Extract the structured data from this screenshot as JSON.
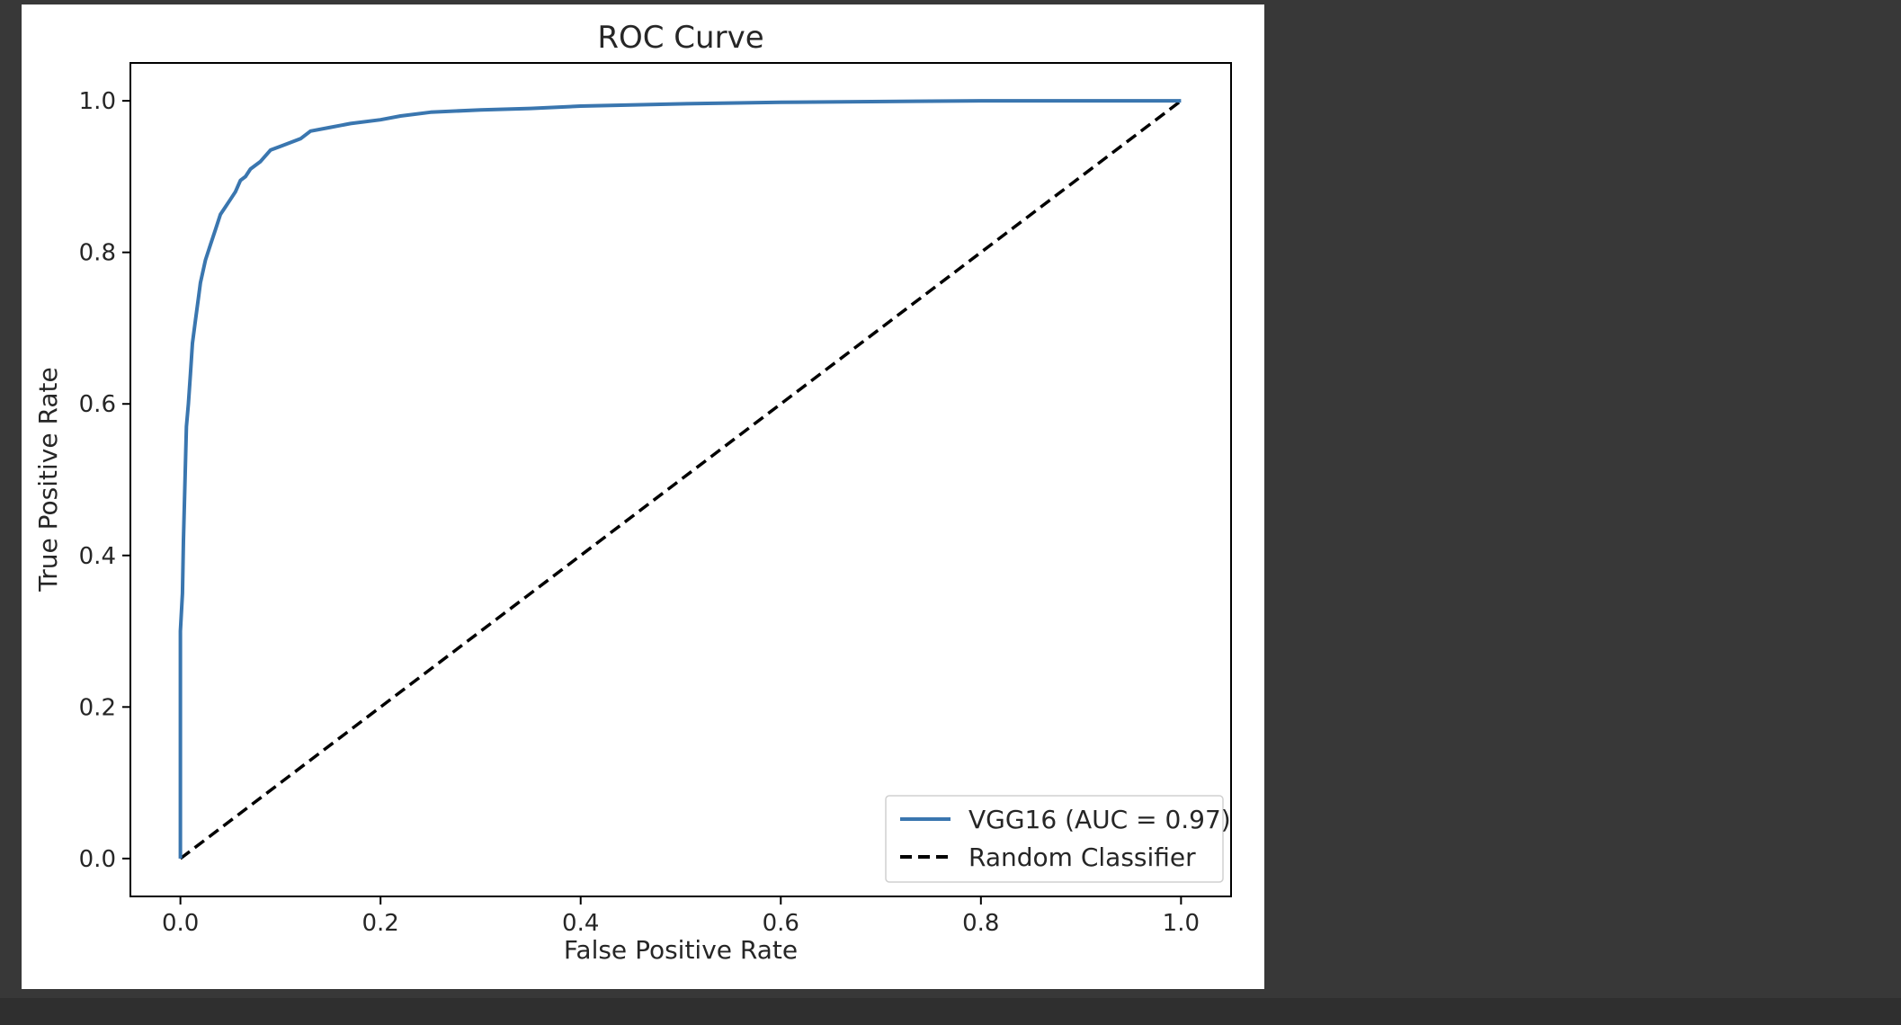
{
  "colors": {
    "page_background": "#383838",
    "figure_background": "#ffffff",
    "roc_line": "#3a76af",
    "random_line": "#000000",
    "text": "#262626"
  },
  "chart_data": {
    "type": "line",
    "title": "ROC Curve",
    "xlabel": "False Positive Rate",
    "ylabel": "True Positive Rate",
    "xlim": [
      -0.05,
      1.05
    ],
    "ylim": [
      -0.05,
      1.05
    ],
    "x_ticks": [
      0.0,
      0.2,
      0.4,
      0.6,
      0.8,
      1.0
    ],
    "y_ticks": [
      0.0,
      0.2,
      0.4,
      0.6,
      0.8,
      1.0
    ],
    "x_tick_labels": [
      "0.0",
      "0.2",
      "0.4",
      "0.6",
      "0.8",
      "1.0"
    ],
    "y_tick_labels": [
      "0.0",
      "0.2",
      "0.4",
      "0.6",
      "0.8",
      "1.0"
    ],
    "grid": false,
    "legend_position": "lower-right",
    "series": [
      {
        "name": "VGG16 (AUC = 0.97)",
        "style": "solid",
        "x": [
          0.0,
          0.0,
          0.002,
          0.003,
          0.004,
          0.005,
          0.006,
          0.008,
          0.01,
          0.012,
          0.015,
          0.018,
          0.02,
          0.025,
          0.03,
          0.035,
          0.04,
          0.045,
          0.05,
          0.055,
          0.06,
          0.065,
          0.07,
          0.08,
          0.09,
          0.1,
          0.12,
          0.13,
          0.15,
          0.17,
          0.2,
          0.22,
          0.25,
          0.3,
          0.35,
          0.4,
          0.5,
          0.6,
          0.8,
          1.0
        ],
        "y": [
          0.0,
          0.3,
          0.35,
          0.42,
          0.47,
          0.52,
          0.57,
          0.6,
          0.64,
          0.68,
          0.71,
          0.74,
          0.76,
          0.79,
          0.81,
          0.83,
          0.85,
          0.86,
          0.87,
          0.88,
          0.895,
          0.9,
          0.91,
          0.92,
          0.935,
          0.94,
          0.95,
          0.96,
          0.965,
          0.97,
          0.975,
          0.98,
          0.985,
          0.988,
          0.99,
          0.993,
          0.996,
          0.998,
          1.0,
          1.0
        ]
      },
      {
        "name": "Random Classifier",
        "style": "dashed",
        "x": [
          0.0,
          1.0
        ],
        "y": [
          0.0,
          1.0
        ]
      }
    ]
  }
}
